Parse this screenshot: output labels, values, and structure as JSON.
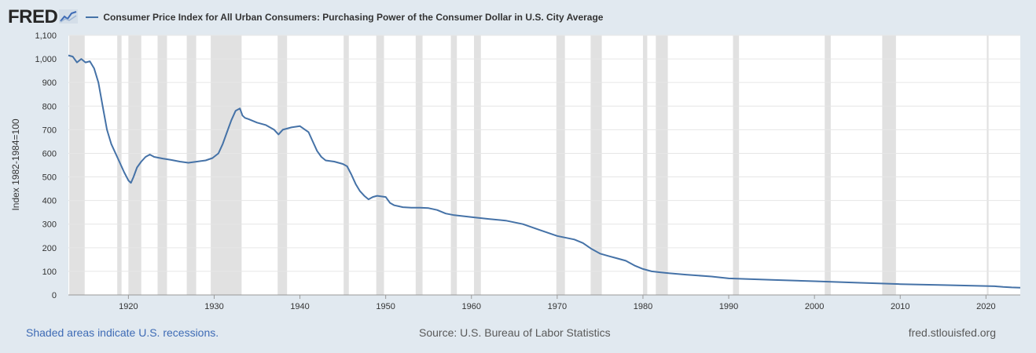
{
  "header": {
    "logo_text": "FRED",
    "series_title": "Consumer Price Index for All Urban Consumers: Purchasing Power of the Consumer Dollar in U.S. City Average"
  },
  "footer": {
    "left": "Shaded areas indicate U.S. recessions.",
    "source": "Source: U.S. Bureau of Labor Statistics",
    "site": "fred.stlouisfed.org"
  },
  "colors": {
    "line": "#4572a7",
    "recession": "#e1e1e1",
    "background": "#e1e9f0",
    "plot": "#ffffff"
  },
  "chart_data": {
    "type": "line",
    "title": "Consumer Price Index for All Urban Consumers: Purchasing Power of the Consumer Dollar in U.S. City Average",
    "ylabel": "Index 1982-1984=100",
    "xlabel": "",
    "xlim": [
      1913,
      2024
    ],
    "ylim": [
      0,
      1100
    ],
    "grid": true,
    "x_ticks": [
      1920,
      1930,
      1940,
      1950,
      1960,
      1970,
      1980,
      1990,
      2000,
      2010,
      2020
    ],
    "y_ticks": [
      0,
      100,
      200,
      300,
      400,
      500,
      600,
      700,
      800,
      900,
      1000,
      1100
    ],
    "y_tick_labels": [
      "0",
      "100",
      "200",
      "300",
      "400",
      "500",
      "600",
      "700",
      "800",
      "900",
      "1,000",
      "1,100"
    ],
    "recessions": [
      [
        1913.1,
        1914.9
      ],
      [
        1918.7,
        1919.2
      ],
      [
        1920.0,
        1921.5
      ],
      [
        1923.4,
        1924.5
      ],
      [
        1926.8,
        1927.9
      ],
      [
        1929.6,
        1933.2
      ],
      [
        1937.4,
        1938.5
      ],
      [
        1945.1,
        1945.7
      ],
      [
        1948.9,
        1949.8
      ],
      [
        1953.5,
        1954.3
      ],
      [
        1957.6,
        1958.3
      ],
      [
        1960.3,
        1961.1
      ],
      [
        1969.9,
        1970.9
      ],
      [
        1973.9,
        1975.2
      ],
      [
        1980.0,
        1980.5
      ],
      [
        1981.5,
        1982.9
      ],
      [
        1990.5,
        1991.2
      ],
      [
        2001.2,
        2001.9
      ],
      [
        2007.9,
        2009.5
      ],
      [
        2020.1,
        2020.3
      ]
    ],
    "series": [
      {
        "x": [
          1913.0,
          1913.5,
          1914.0,
          1914.5,
          1915.0,
          1915.5,
          1916.0,
          1916.5,
          1917.0,
          1917.5,
          1918.0,
          1918.5,
          1919.0,
          1919.5,
          1920.0,
          1920.3,
          1920.6,
          1921.0,
          1921.5,
          1922.0,
          1922.5,
          1923.0,
          1924.0,
          1925.0,
          1926.0,
          1927.0,
          1928.0,
          1929.0,
          1929.8,
          1930.5,
          1931.0,
          1931.5,
          1932.0,
          1932.5,
          1933.0,
          1933.3,
          1933.6,
          1934.0,
          1935.0,
          1936.0,
          1937.0,
          1937.5,
          1938.0,
          1939.0,
          1940.0,
          1941.0,
          1941.5,
          1942.0,
          1942.5,
          1943.0,
          1944.0,
          1945.0,
          1945.5,
          1946.0,
          1946.5,
          1947.0,
          1947.5,
          1948.0,
          1948.5,
          1949.0,
          1950.0,
          1950.5,
          1951.0,
          1952.0,
          1953.0,
          1954.0,
          1955.0,
          1956.0,
          1957.0,
          1958.0,
          1960.0,
          1962.0,
          1964.0,
          1966.0,
          1968.0,
          1970.0,
          1972.0,
          1973.0,
          1974.0,
          1975.0,
          1976.0,
          1977.0,
          1978.0,
          1979.0,
          1980.0,
          1981.0,
          1982.0,
          1983.0,
          1985.0,
          1988.0,
          1990.0,
          1995.0,
          2000.0,
          2005.0,
          2010.0,
          2015.0,
          2020.0,
          2021.0,
          2022.0,
          2023.0,
          2024.0
        ],
        "values": [
          1015,
          1010,
          985,
          1000,
          985,
          990,
          960,
          900,
          800,
          700,
          640,
          600,
          560,
          520,
          485,
          475,
          500,
          540,
          565,
          585,
          595,
          585,
          578,
          572,
          565,
          560,
          565,
          570,
          580,
          600,
          640,
          690,
          740,
          780,
          790,
          760,
          750,
          745,
          730,
          720,
          700,
          680,
          700,
          710,
          715,
          690,
          650,
          610,
          585,
          570,
          565,
          555,
          545,
          510,
          470,
          440,
          420,
          405,
          415,
          420,
          415,
          390,
          380,
          372,
          370,
          370,
          368,
          360,
          345,
          338,
          330,
          322,
          315,
          300,
          275,
          250,
          235,
          220,
          195,
          175,
          165,
          155,
          145,
          125,
          110,
          100,
          96,
          92,
          86,
          78,
          70,
          64,
          58,
          52,
          46,
          42,
          38,
          37,
          34,
          32,
          31
        ]
      }
    ]
  }
}
